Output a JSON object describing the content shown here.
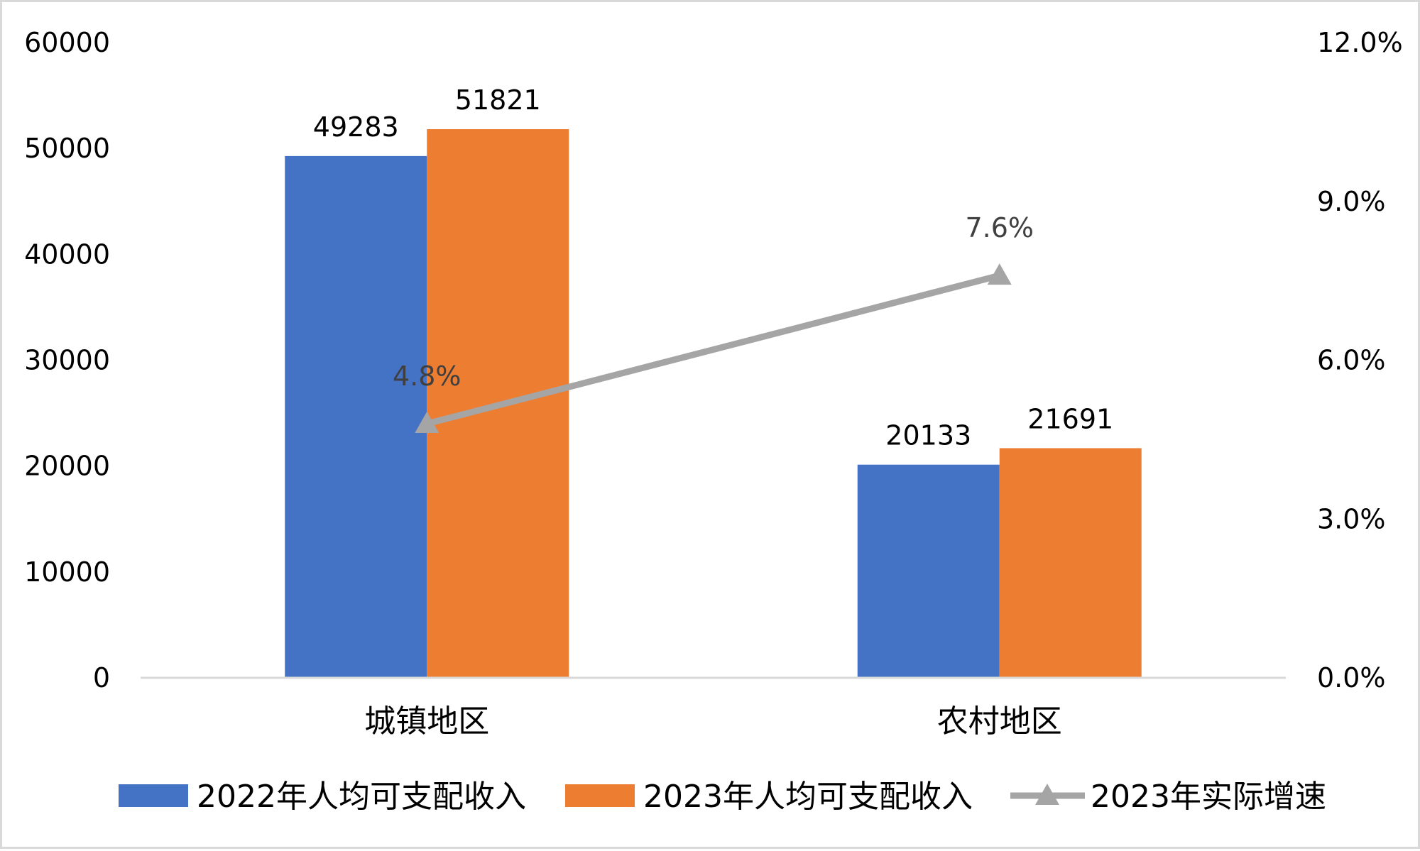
{
  "chart_data": {
    "type": "bar",
    "categories": [
      "城镇地区",
      "农村地区"
    ],
    "series": [
      {
        "name": "2022年人均可支配收入",
        "values": [
          49283,
          20133
        ],
        "color": "#4472C4",
        "axis": "left",
        "kind": "bar"
      },
      {
        "name": "2023年人均可支配收入",
        "values": [
          51821,
          21691
        ],
        "color": "#ED7D31",
        "axis": "left",
        "kind": "bar"
      },
      {
        "name": "2023年实际增速",
        "values": [
          4.8,
          7.6
        ],
        "labels": [
          "4.8%",
          "7.6%"
        ],
        "color": "#A5A5A5",
        "axis": "right",
        "kind": "line",
        "marker": "triangle"
      }
    ],
    "y_left": {
      "ylim": [
        0,
        60000
      ],
      "ticks": [
        "0",
        "10000",
        "20000",
        "30000",
        "40000",
        "50000",
        "60000"
      ]
    },
    "y_right": {
      "ylim": [
        0,
        12
      ],
      "ticks": [
        "0.0%",
        "3.0%",
        "6.0%",
        "9.0%",
        "12.0%"
      ]
    },
    "grid": false,
    "legend_position": "bottom"
  }
}
